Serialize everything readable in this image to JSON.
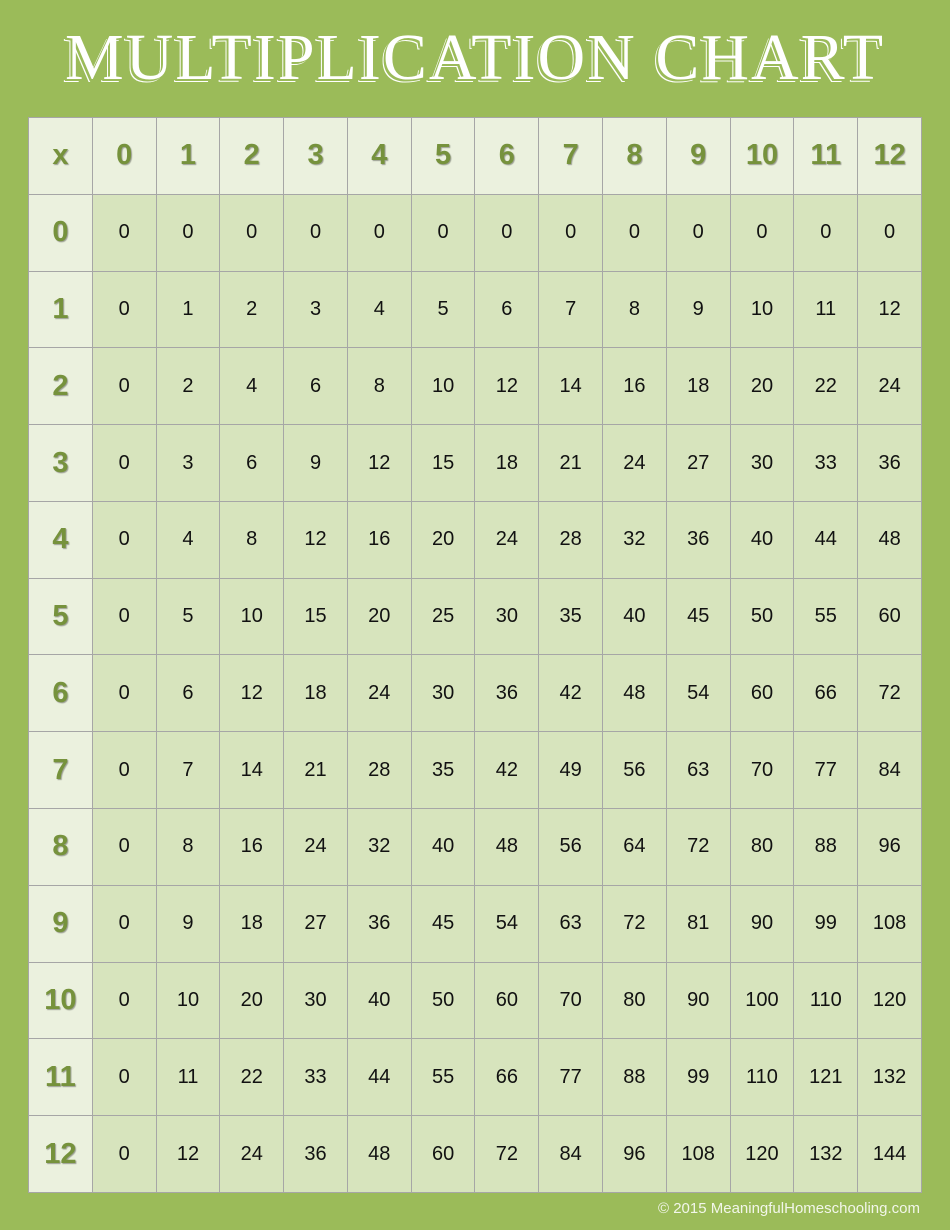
{
  "title": "MULTIPLICATION CHART",
  "corner_label": "x",
  "column_headers": [
    "0",
    "1",
    "2",
    "3",
    "4",
    "5",
    "6",
    "7",
    "8",
    "9",
    "10",
    "11",
    "12"
  ],
  "row_headers": [
    "0",
    "1",
    "2",
    "3",
    "4",
    "5",
    "6",
    "7",
    "8",
    "9",
    "10",
    "11",
    "12"
  ],
  "rows": [
    [
      "0",
      "0",
      "0",
      "0",
      "0",
      "0",
      "0",
      "0",
      "0",
      "0",
      "0",
      "0",
      "0"
    ],
    [
      "0",
      "1",
      "2",
      "3",
      "4",
      "5",
      "6",
      "7",
      "8",
      "9",
      "10",
      "11",
      "12"
    ],
    [
      "0",
      "2",
      "4",
      "6",
      "8",
      "10",
      "12",
      "14",
      "16",
      "18",
      "20",
      "22",
      "24"
    ],
    [
      "0",
      "3",
      "6",
      "9",
      "12",
      "15",
      "18",
      "21",
      "24",
      "27",
      "30",
      "33",
      "36"
    ],
    [
      "0",
      "4",
      "8",
      "12",
      "16",
      "20",
      "24",
      "28",
      "32",
      "36",
      "40",
      "44",
      "48"
    ],
    [
      "0",
      "5",
      "10",
      "15",
      "20",
      "25",
      "30",
      "35",
      "40",
      "45",
      "50",
      "55",
      "60"
    ],
    [
      "0",
      "6",
      "12",
      "18",
      "24",
      "30",
      "36",
      "42",
      "48",
      "54",
      "60",
      "66",
      "72"
    ],
    [
      "0",
      "7",
      "14",
      "21",
      "28",
      "35",
      "42",
      "49",
      "56",
      "63",
      "70",
      "77",
      "84"
    ],
    [
      "0",
      "8",
      "16",
      "24",
      "32",
      "40",
      "48",
      "56",
      "64",
      "72",
      "80",
      "88",
      "96"
    ],
    [
      "0",
      "9",
      "18",
      "27",
      "36",
      "45",
      "54",
      "63",
      "72",
      "81",
      "90",
      "99",
      "108"
    ],
    [
      "0",
      "10",
      "20",
      "30",
      "40",
      "50",
      "60",
      "70",
      "80",
      "90",
      "100",
      "110",
      "120"
    ],
    [
      "0",
      "11",
      "22",
      "33",
      "44",
      "55",
      "66",
      "77",
      "88",
      "99",
      "110",
      "121",
      "132"
    ],
    [
      "0",
      "12",
      "24",
      "36",
      "48",
      "60",
      "72",
      "84",
      "96",
      "108",
      "120",
      "132",
      "144"
    ]
  ],
  "footer": "© 2015 MeaningfulHomeschooling.com",
  "colors": {
    "background": "#9bbb59",
    "header_cell": "#ebf1de",
    "body_cell": "#d7e4bd",
    "header_text": "#76923c",
    "grid": "#a6a6a6"
  }
}
